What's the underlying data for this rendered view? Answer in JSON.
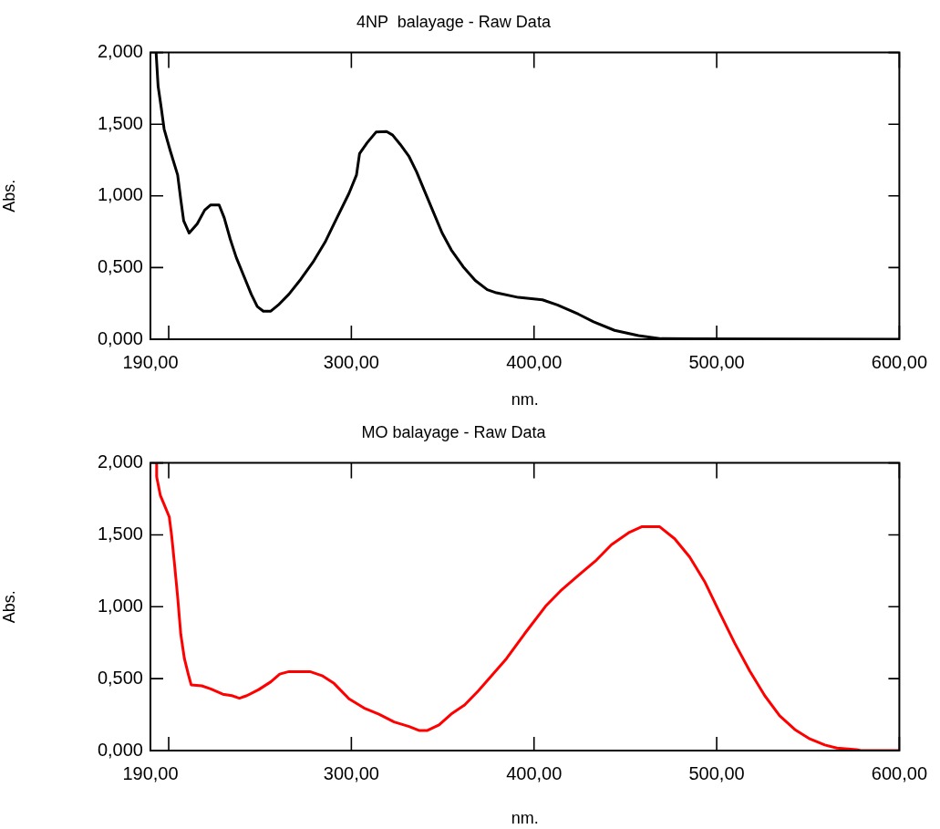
{
  "chart_data": [
    {
      "type": "line",
      "title": "4NP  balayage - Raw Data",
      "xlabel": "nm.",
      "ylabel": "Abs.",
      "series": [
        {
          "color": "#000000",
          "x": [
            193.1,
            194.2,
            195.9,
            197.5,
            200.8,
            204.9,
            206.6,
            208.2,
            211.2,
            215.6,
            219.7,
            223,
            227.6,
            230.4,
            233.7,
            237,
            241.1,
            245.2,
            248.5,
            251.8,
            255.9,
            260,
            265.8,
            272.4,
            279,
            285.6,
            292.1,
            298.7,
            302.8,
            304.5,
            308.6,
            313.5,
            319.3,
            322.6,
            326.7,
            331.6,
            335.7,
            339.9,
            344.8,
            349.7,
            354.7,
            361.2,
            367.8,
            374.4,
            379.4,
            391.4,
            404.6,
            412.8,
            424.3,
            432.6,
            444.1,
            457.2,
            469.6,
            600
          ],
          "values": [
            2.0,
            1.765,
            1.616,
            1.466,
            1.317,
            1.146,
            0.975,
            0.826,
            0.741,
            0.805,
            0.901,
            0.937,
            0.937,
            0.847,
            0.698,
            0.57,
            0.442,
            0.314,
            0.228,
            0.196,
            0.196,
            0.239,
            0.314,
            0.42,
            0.538,
            0.677,
            0.847,
            1.018,
            1.146,
            1.296,
            1.37,
            1.445,
            1.449,
            1.424,
            1.36,
            1.274,
            1.168,
            1.039,
            0.89,
            0.741,
            0.623,
            0.506,
            0.41,
            0.346,
            0.324,
            0.292,
            0.275,
            0.239,
            0.175,
            0.122,
            0.062,
            0.026,
            0.004,
            0
          ]
        }
      ],
      "xlim": [
        190,
        600
      ],
      "xticks": [
        {
          "value": 190,
          "label": "190,00"
        },
        {
          "value": 200,
          "label": null
        },
        {
          "value": 300,
          "label": "300,00"
        },
        {
          "value": 400,
          "label": "400,00"
        },
        {
          "value": 500,
          "label": "500,00"
        },
        {
          "value": 600,
          "label": "600,00"
        }
      ],
      "ylim": [
        0,
        2
      ],
      "yticks": [
        {
          "value": 0,
          "label": "0,000"
        },
        {
          "value": 0.5,
          "label": "0,500"
        },
        {
          "value": 1,
          "label": "1,000"
        },
        {
          "value": 1.5,
          "label": "1,500"
        },
        {
          "value": 2,
          "label": "2,000"
        }
      ],
      "grid": false
    },
    {
      "type": "line",
      "title": "MO balayage - Raw Data",
      "xlabel": "nm.",
      "ylabel": "Abs.",
      "series": [
        {
          "color": "#ff0000",
          "x": [
            193.4,
            193.4,
            195.4,
            197.5,
            200.3,
            201.6,
            203.3,
            204.9,
            206.6,
            208.6,
            210.7,
            212.3,
            218.1,
            223,
            229.6,
            234.5,
            238.7,
            242.8,
            249.3,
            255.9,
            260.8,
            265.8,
            277.3,
            283.9,
            290.5,
            298.7,
            306.9,
            315.1,
            323.4,
            331.6,
            337.3,
            341.4,
            348,
            354.6,
            362,
            369.4,
            377.6,
            384.9,
            394.7,
            406.3,
            414.5,
            424.3,
            434.2,
            442.4,
            452.3,
            458.9,
            468.8,
            477,
            485.2,
            493.4,
            501.6,
            509.9,
            518.1,
            526.3,
            534.5,
            542.8,
            551,
            559.2,
            565.8,
            576.5,
            579,
            600
          ],
          "values": [
            2.0,
            1.904,
            1.775,
            1.711,
            1.625,
            1.496,
            1.282,
            1.068,
            0.81,
            0.639,
            0.532,
            0.457,
            0.45,
            0.429,
            0.392,
            0.382,
            0.364,
            0.382,
            0.424,
            0.478,
            0.532,
            0.549,
            0.549,
            0.521,
            0.467,
            0.36,
            0.296,
            0.253,
            0.199,
            0.167,
            0.139,
            0.139,
            0.178,
            0.253,
            0.317,
            0.414,
            0.532,
            0.639,
            0.81,
            1.003,
            1.11,
            1.218,
            1.325,
            1.432,
            1.518,
            1.556,
            1.556,
            1.473,
            1.346,
            1.175,
            0.96,
            0.746,
            0.553,
            0.382,
            0.242,
            0.146,
            0.081,
            0.039,
            0.017,
            0.006,
            0,
            0
          ]
        }
      ],
      "xlim": [
        190,
        600
      ],
      "xticks": [
        {
          "value": 190,
          "label": "190,00"
        },
        {
          "value": 200,
          "label": null
        },
        {
          "value": 300,
          "label": "300,00"
        },
        {
          "value": 400,
          "label": "400,00"
        },
        {
          "value": 500,
          "label": "500,00"
        },
        {
          "value": 600,
          "label": "600,00"
        }
      ],
      "ylim": [
        0,
        2
      ],
      "yticks": [
        {
          "value": 0,
          "label": "0,000"
        },
        {
          "value": 0.5,
          "label": "0,500"
        },
        {
          "value": 1,
          "label": "1,000"
        },
        {
          "value": 1.5,
          "label": "1,500"
        },
        {
          "value": 2,
          "label": "2,000"
        }
      ],
      "grid": false
    }
  ]
}
